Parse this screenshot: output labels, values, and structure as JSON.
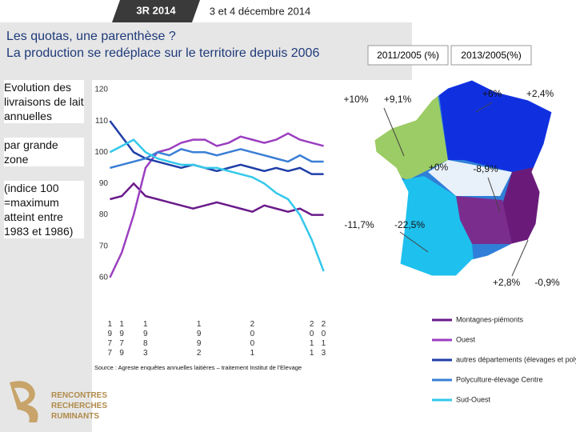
{
  "header": {
    "logo": "3R 2014",
    "date": "3 et 4 décembre 2014"
  },
  "title": "Les quotas, une parenthèse ?",
  "subtitle": "La production se redéplace sur le territoire depuis 2006",
  "notes": {
    "description": "Evolution des livraisons de lait annuelles",
    "grouping": "par grande zone",
    "index_note": "(indice 100 =maximum atteint entre 1983 et 1986)"
  },
  "chart_data": {
    "type": "line",
    "x": [
      1977,
      1979,
      1981,
      1983,
      1985,
      1987,
      1989,
      1991,
      1993,
      1995,
      1997,
      1999,
      2001,
      2003,
      2005,
      2007,
      2009,
      2011,
      2013
    ],
    "series": [
      {
        "name": "Montagnes-piémonts",
        "color": "#6a1b8a",
        "values": [
          85,
          86,
          90,
          86,
          85,
          84,
          83,
          82,
          83,
          84,
          83,
          82,
          81,
          83,
          82,
          81,
          82,
          80,
          80
        ]
      },
      {
        "name": "Ouest",
        "color": "#9b3fc0",
        "values": [
          60,
          68,
          80,
          95,
          100,
          101,
          103,
          104,
          104,
          102,
          103,
          105,
          104,
          103,
          104,
          106,
          104,
          103,
          102
        ]
      },
      {
        "name": "autres départements (élevages et polyc-élevage)",
        "color": "#1f3fa8",
        "values": [
          110,
          105,
          100,
          98,
          97,
          96,
          95,
          96,
          95,
          94,
          95,
          96,
          95,
          94,
          95,
          94,
          95,
          93,
          93
        ]
      },
      {
        "name": "Polyculture-élevage Centre",
        "color": "#3a7fd5",
        "values": [
          95,
          96,
          97,
          98,
          100,
          99,
          101,
          100,
          100,
          99,
          100,
          101,
          100,
          99,
          98,
          97,
          99,
          97,
          97
        ]
      },
      {
        "name": "Sud-Ouest",
        "color": "#33c8ea",
        "values": [
          100,
          102,
          104,
          100,
          98,
          97,
          96,
          96,
          95,
          95,
          94,
          93,
          92,
          90,
          87,
          85,
          80,
          72,
          62
        ]
      }
    ],
    "xlim": [
      1976,
      2014
    ],
    "xticks": [
      1977,
      1979,
      1983,
      1992,
      2001,
      2011,
      2013
    ],
    "ylim": [
      50,
      120
    ],
    "yticks": [
      60,
      70,
      80,
      90,
      100,
      110,
      120
    ],
    "grid": false,
    "source": "Source : Agreste enquêtes annuelles laitières – traitement Institut de l'Elevage"
  },
  "map": {
    "headers": [
      "2011/2005 (%)",
      "2013/2005(%)"
    ],
    "labels": [
      "+10%",
      "+9,1%",
      "+6%",
      "+2,4%",
      "+0%",
      "-8,9%",
      "-11,7%",
      "-22,5%",
      "+2,8%",
      "-0,9%"
    ]
  },
  "footer": {
    "logo_lines": [
      "RENCONTRES",
      "RECHERCHES",
      "RUMINANTS"
    ]
  }
}
